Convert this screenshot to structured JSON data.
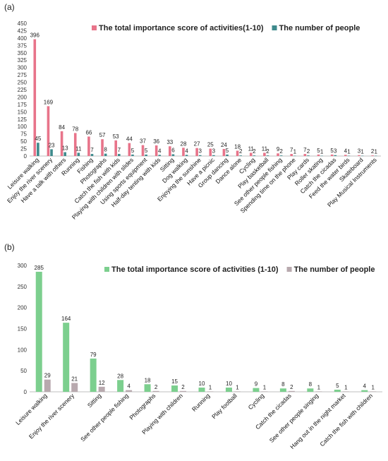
{
  "chart_data": [
    {
      "panel_label": "(a)",
      "type": "bar",
      "categories": [
        "Leisure walking",
        "Enjoy the river scenery",
        "Have a talk with others",
        "Running",
        "Fishing",
        "Photographs",
        "Catch the fish with kids",
        "Playing with children with slides",
        "Using sports equipment",
        "Half-day tenting with kids",
        "Sitting",
        "Dog walking",
        "Enjoying the sunshine",
        "Have a picnic",
        "Group dancing",
        "Dance alone",
        "Cycling",
        "Play basketball",
        "See other people fishing",
        "Spending time on the phone",
        "Play cards",
        "Roller skating",
        "Catch the cicadas",
        "Feed the water birds",
        "Skateboard",
        "Play Musical Instruments"
      ],
      "series": [
        {
          "name": "The total importance score of activities(1-10)",
          "color": "#E8748A",
          "values": [
            396,
            169,
            84,
            78,
            66,
            57,
            53,
            44,
            37,
            36,
            33,
            28,
            27,
            25,
            24,
            18,
            11,
            11,
            9,
            7,
            7,
            5,
            5,
            4,
            3,
            2
          ]
        },
        {
          "name": "The number of people",
          "color": "#3E8A8C",
          "values": [
            45,
            23,
            13,
            11,
            7,
            8,
            7,
            5,
            5,
            4,
            6,
            4,
            3,
            3,
            5,
            2,
            2,
            2,
            2,
            1,
            2,
            1,
            3,
            1,
            1,
            1
          ]
        }
      ],
      "ylim": [
        0,
        450
      ],
      "yticks": [
        0,
        25,
        50,
        75,
        100,
        125,
        150,
        175,
        200,
        225,
        250,
        275,
        300,
        325,
        350,
        375,
        400,
        425,
        450
      ],
      "legend": "top-right",
      "grid": false
    },
    {
      "panel_label": "(b)",
      "type": "bar",
      "categories": [
        "Leisure walking",
        "Enjoy the river scenery",
        "Sitting",
        "See other people fishing",
        "Photographs",
        "Playing with children",
        "Running",
        "Play football",
        "Cycling",
        "Catch the cicadas",
        "See other people singing",
        "Hang out in the night market",
        "Catch the fish with children"
      ],
      "series": [
        {
          "name": "The total importance score of activities (1-10)",
          "color": "#7CCF8E",
          "values": [
            285,
            164,
            79,
            28,
            18,
            15,
            10,
            10,
            9,
            8,
            8,
            5,
            4
          ]
        },
        {
          "name": "The number of people",
          "color": "#B8A9AE",
          "values": [
            29,
            21,
            12,
            4,
            2,
            2,
            1,
            1,
            1,
            2,
            1,
            1,
            1
          ]
        }
      ],
      "ylim": [
        0,
        300
      ],
      "yticks": [
        0,
        50,
        100,
        150,
        200,
        250,
        300
      ],
      "legend": "top-right",
      "grid": false
    }
  ]
}
